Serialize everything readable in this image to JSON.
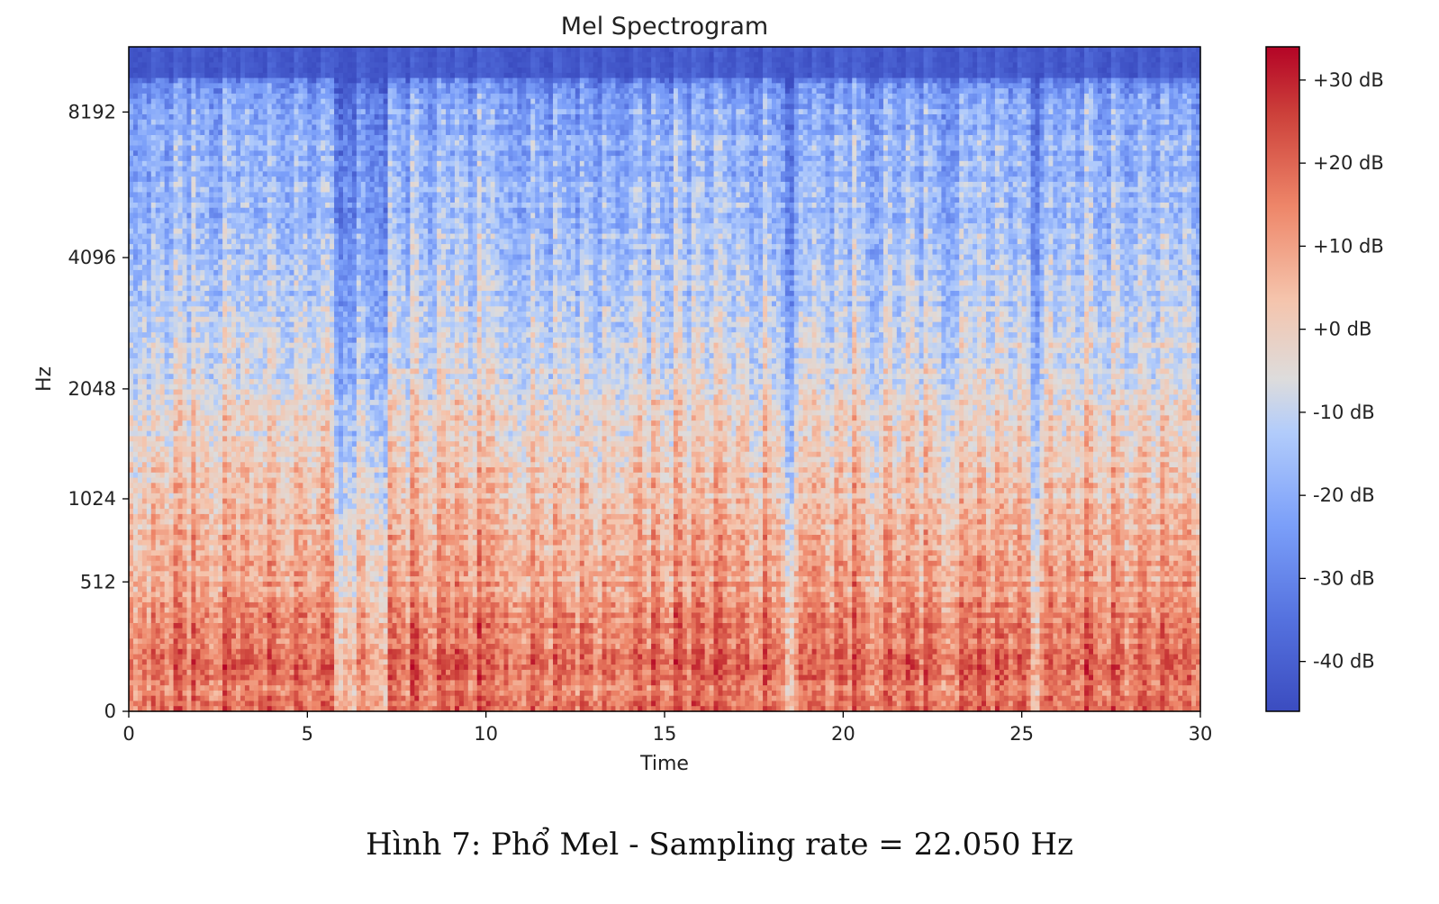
{
  "figure": {
    "caption": "Hình 7: Phổ Mel - Sampling rate = 22.050 Hz"
  },
  "chart_data": {
    "type": "heatmap",
    "title": "Mel Spectrogram",
    "xlabel": "Time",
    "ylabel": "Hz",
    "x_range": [
      0,
      30
    ],
    "x_ticks": [
      0,
      5,
      10,
      15,
      20,
      25,
      30
    ],
    "x_tick_labels": [
      "0",
      "5",
      "10",
      "15",
      "20",
      "25",
      "30"
    ],
    "y_scale": "mel",
    "y_range_hz": [
      0,
      11025
    ],
    "y_ticks_hz": [
      0,
      512,
      1024,
      2048,
      4096,
      8192
    ],
    "y_tick_labels": [
      "0",
      "512",
      "1024",
      "2048",
      "4096",
      "8192"
    ],
    "colormap": "coolwarm",
    "colorbar": {
      "range_db": [
        -46,
        34
      ],
      "ticks_db": [
        30,
        20,
        10,
        0,
        -10,
        -20,
        -30,
        -40
      ],
      "tick_labels": [
        "+30 dB",
        "+20 dB",
        "+10 dB",
        "+0 dB",
        "-10 dB",
        "-20 dB",
        "-30 dB",
        "-40 dB"
      ]
    },
    "energy_profile": {
      "description_level_db_by_frequency_hz": [
        {
          "hz": 0,
          "db": 14
        },
        {
          "hz": 256,
          "db": 14
        },
        {
          "hz": 512,
          "db": 6
        },
        {
          "hz": 1024,
          "db": 0
        },
        {
          "hz": 2048,
          "db": -8
        },
        {
          "hz": 4096,
          "db": -18
        },
        {
          "hz": 8192,
          "db": -24
        },
        {
          "hz": 11025,
          "db": -44
        }
      ],
      "onset_times_s": [
        0.6,
        1.2,
        1.7,
        2.6,
        3.1,
        3.9,
        4.6,
        5.4,
        6.4,
        7.3,
        7.9,
        8.6,
        9.1,
        9.8,
        10.1,
        11.2,
        11.9,
        12.6,
        13.2,
        14.1,
        14.6,
        15.3,
        15.8,
        16.4,
        17.0,
        17.8,
        18.6,
        19.1,
        19.8,
        20.3,
        21.1,
        21.7,
        22.3,
        23.2,
        23.7,
        24.3,
        24.9,
        25.6,
        26.2,
        26.8,
        27.5,
        28.2,
        28.9,
        29.5
      ],
      "quiet_regions_s": [
        [
          5.8,
          7.2
        ],
        [
          18.4,
          18.7
        ],
        [
          25.2,
          25.5
        ]
      ]
    }
  },
  "colors": {
    "cmap_low": "#3b4cc0",
    "cmap_mid": "#dddddd",
    "cmap_high": "#b40426"
  }
}
